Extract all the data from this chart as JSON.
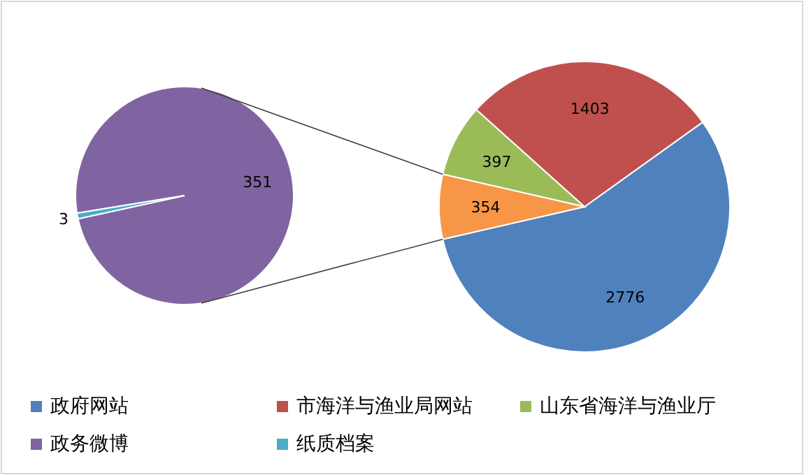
{
  "chart_data": [
    {
      "type": "pie",
      "categories": [
        "政府网站",
        "市海洋与渔业局网站",
        "山东省海洋与渔业厅",
        null
      ],
      "values": [
        2776,
        1403,
        397,
        354
      ],
      "colors": [
        "#4f81bd",
        "#c0504d",
        "#9bbb59",
        "#f79646"
      ],
      "data_labels": true,
      "legend": "bottom"
    },
    {
      "type": "pie",
      "categories": [
        "政务微博",
        "纸质档案"
      ],
      "values": [
        351,
        3
      ],
      "colors": [
        "#8064a2",
        "#4bacc6"
      ],
      "data_labels": true,
      "legend": "bottom"
    }
  ]
}
